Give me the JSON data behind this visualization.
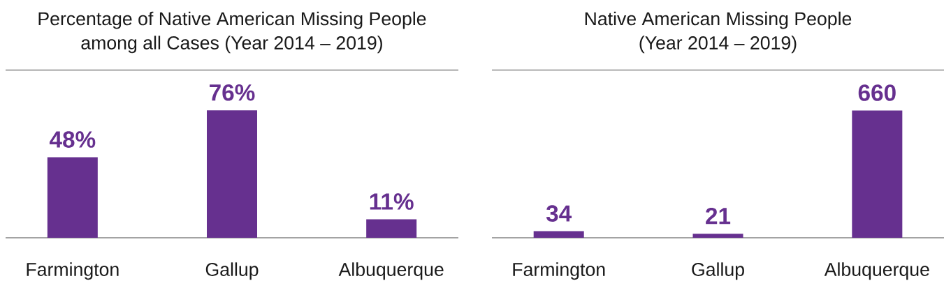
{
  "chart_data": [
    {
      "type": "bar",
      "title": "Percentage of Native American Missing People among all Cases (Year 2014 – 2019)",
      "categories": [
        "Farmington",
        "Gallup",
        "Albuquerque"
      ],
      "values": [
        48,
        76,
        11
      ],
      "value_labels": [
        "48%",
        "76%",
        "11%"
      ],
      "color": "#66308f",
      "ylim": [
        0,
        100
      ],
      "tick_labels": "x"
    },
    {
      "type": "bar",
      "title": "Native American Missing People (Year 2014 – 2019)",
      "categories": [
        "Farmington",
        "Gallup",
        "Albuquerque"
      ],
      "values": [
        34,
        21,
        660
      ],
      "data_labels": true,
      "color": "#66308f",
      "ylim": [
        0,
        870
      ],
      "tick_labels": "x"
    }
  ]
}
